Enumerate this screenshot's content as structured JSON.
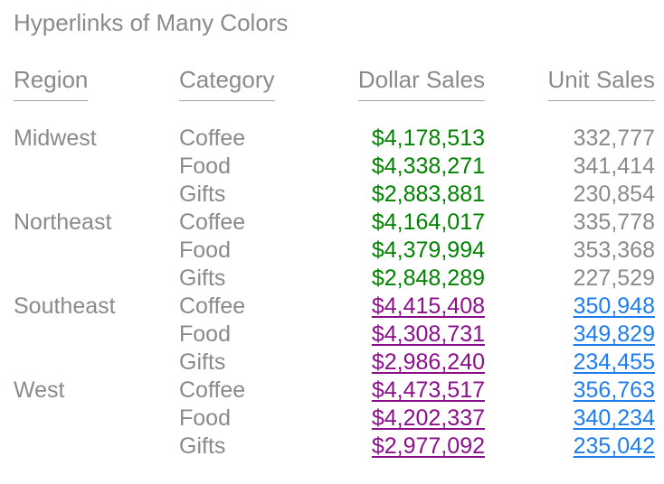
{
  "title": "Hyperlinks of Many Colors",
  "colors": {
    "background": "#ffffff",
    "text_gray": "#8a8a8a",
    "header_underline": "#a3a3a3",
    "green": "#008200",
    "purple": "#8b0f8b",
    "blue": "#1e7df0"
  },
  "table": {
    "columns": [
      {
        "label": "Region",
        "align": "left"
      },
      {
        "label": "Category",
        "align": "left"
      },
      {
        "label": "Dollar Sales",
        "align": "right"
      },
      {
        "label": "Unit Sales",
        "align": "right"
      }
    ],
    "rows": [
      {
        "region": "Midwest",
        "category": "Coffee",
        "dollar_sales": "$4,178,513",
        "unit_sales": "332,777",
        "dollar_color": "green",
        "unit_color": "gray",
        "linked": false
      },
      {
        "region": "",
        "category": "Food",
        "dollar_sales": "$4,338,271",
        "unit_sales": "341,414",
        "dollar_color": "green",
        "unit_color": "gray",
        "linked": false
      },
      {
        "region": "",
        "category": "Gifts",
        "dollar_sales": "$2,883,881",
        "unit_sales": "230,854",
        "dollar_color": "green",
        "unit_color": "gray",
        "linked": false
      },
      {
        "region": "Northeast",
        "category": "Coffee",
        "dollar_sales": "$4,164,017",
        "unit_sales": "335,778",
        "dollar_color": "green",
        "unit_color": "gray",
        "linked": false
      },
      {
        "region": "",
        "category": "Food",
        "dollar_sales": "$4,379,994",
        "unit_sales": "353,368",
        "dollar_color": "green",
        "unit_color": "gray",
        "linked": false
      },
      {
        "region": "",
        "category": "Gifts",
        "dollar_sales": "$2,848,289",
        "unit_sales": "227,529",
        "dollar_color": "green",
        "unit_color": "gray",
        "linked": false
      },
      {
        "region": "Southeast",
        "category": "Coffee",
        "dollar_sales": "$4,415,408",
        "unit_sales": "350,948",
        "dollar_color": "purple",
        "unit_color": "blue",
        "linked": true
      },
      {
        "region": "",
        "category": "Food",
        "dollar_sales": "$4,308,731",
        "unit_sales": "349,829",
        "dollar_color": "purple",
        "unit_color": "blue",
        "linked": true
      },
      {
        "region": "",
        "category": "Gifts",
        "dollar_sales": "$2,986,240",
        "unit_sales": "234,455",
        "dollar_color": "purple",
        "unit_color": "blue",
        "linked": true
      },
      {
        "region": "West",
        "category": "Coffee",
        "dollar_sales": "$4,473,517",
        "unit_sales": "356,763",
        "dollar_color": "purple",
        "unit_color": "blue",
        "linked": true
      },
      {
        "region": "",
        "category": "Food",
        "dollar_sales": "$4,202,337",
        "unit_sales": "340,234",
        "dollar_color": "purple",
        "unit_color": "blue",
        "linked": true
      },
      {
        "region": "",
        "category": "Gifts",
        "dollar_sales": "$2,977,092",
        "unit_sales": "235,042",
        "dollar_color": "purple",
        "unit_color": "blue",
        "linked": true
      }
    ]
  },
  "chart_data": {
    "type": "table",
    "title": "Hyperlinks of Many Colors",
    "columns": [
      "Region",
      "Category",
      "Dollar Sales",
      "Unit Sales"
    ],
    "rows": [
      [
        "Midwest",
        "Coffee",
        4178513,
        332777
      ],
      [
        "Midwest",
        "Food",
        4338271,
        341414
      ],
      [
        "Midwest",
        "Gifts",
        2883881,
        230854
      ],
      [
        "Northeast",
        "Coffee",
        4164017,
        335778
      ],
      [
        "Northeast",
        "Food",
        4379994,
        353368
      ],
      [
        "Northeast",
        "Gifts",
        2848289,
        227529
      ],
      [
        "Southeast",
        "Coffee",
        4415408,
        350948
      ],
      [
        "Southeast",
        "Food",
        4308731,
        349829
      ],
      [
        "Southeast",
        "Gifts",
        2986240,
        234455
      ],
      [
        "West",
        "Coffee",
        4473517,
        356763
      ],
      [
        "West",
        "Food",
        4202337,
        340234
      ],
      [
        "West",
        "Gifts",
        2977092,
        235042
      ]
    ]
  }
}
